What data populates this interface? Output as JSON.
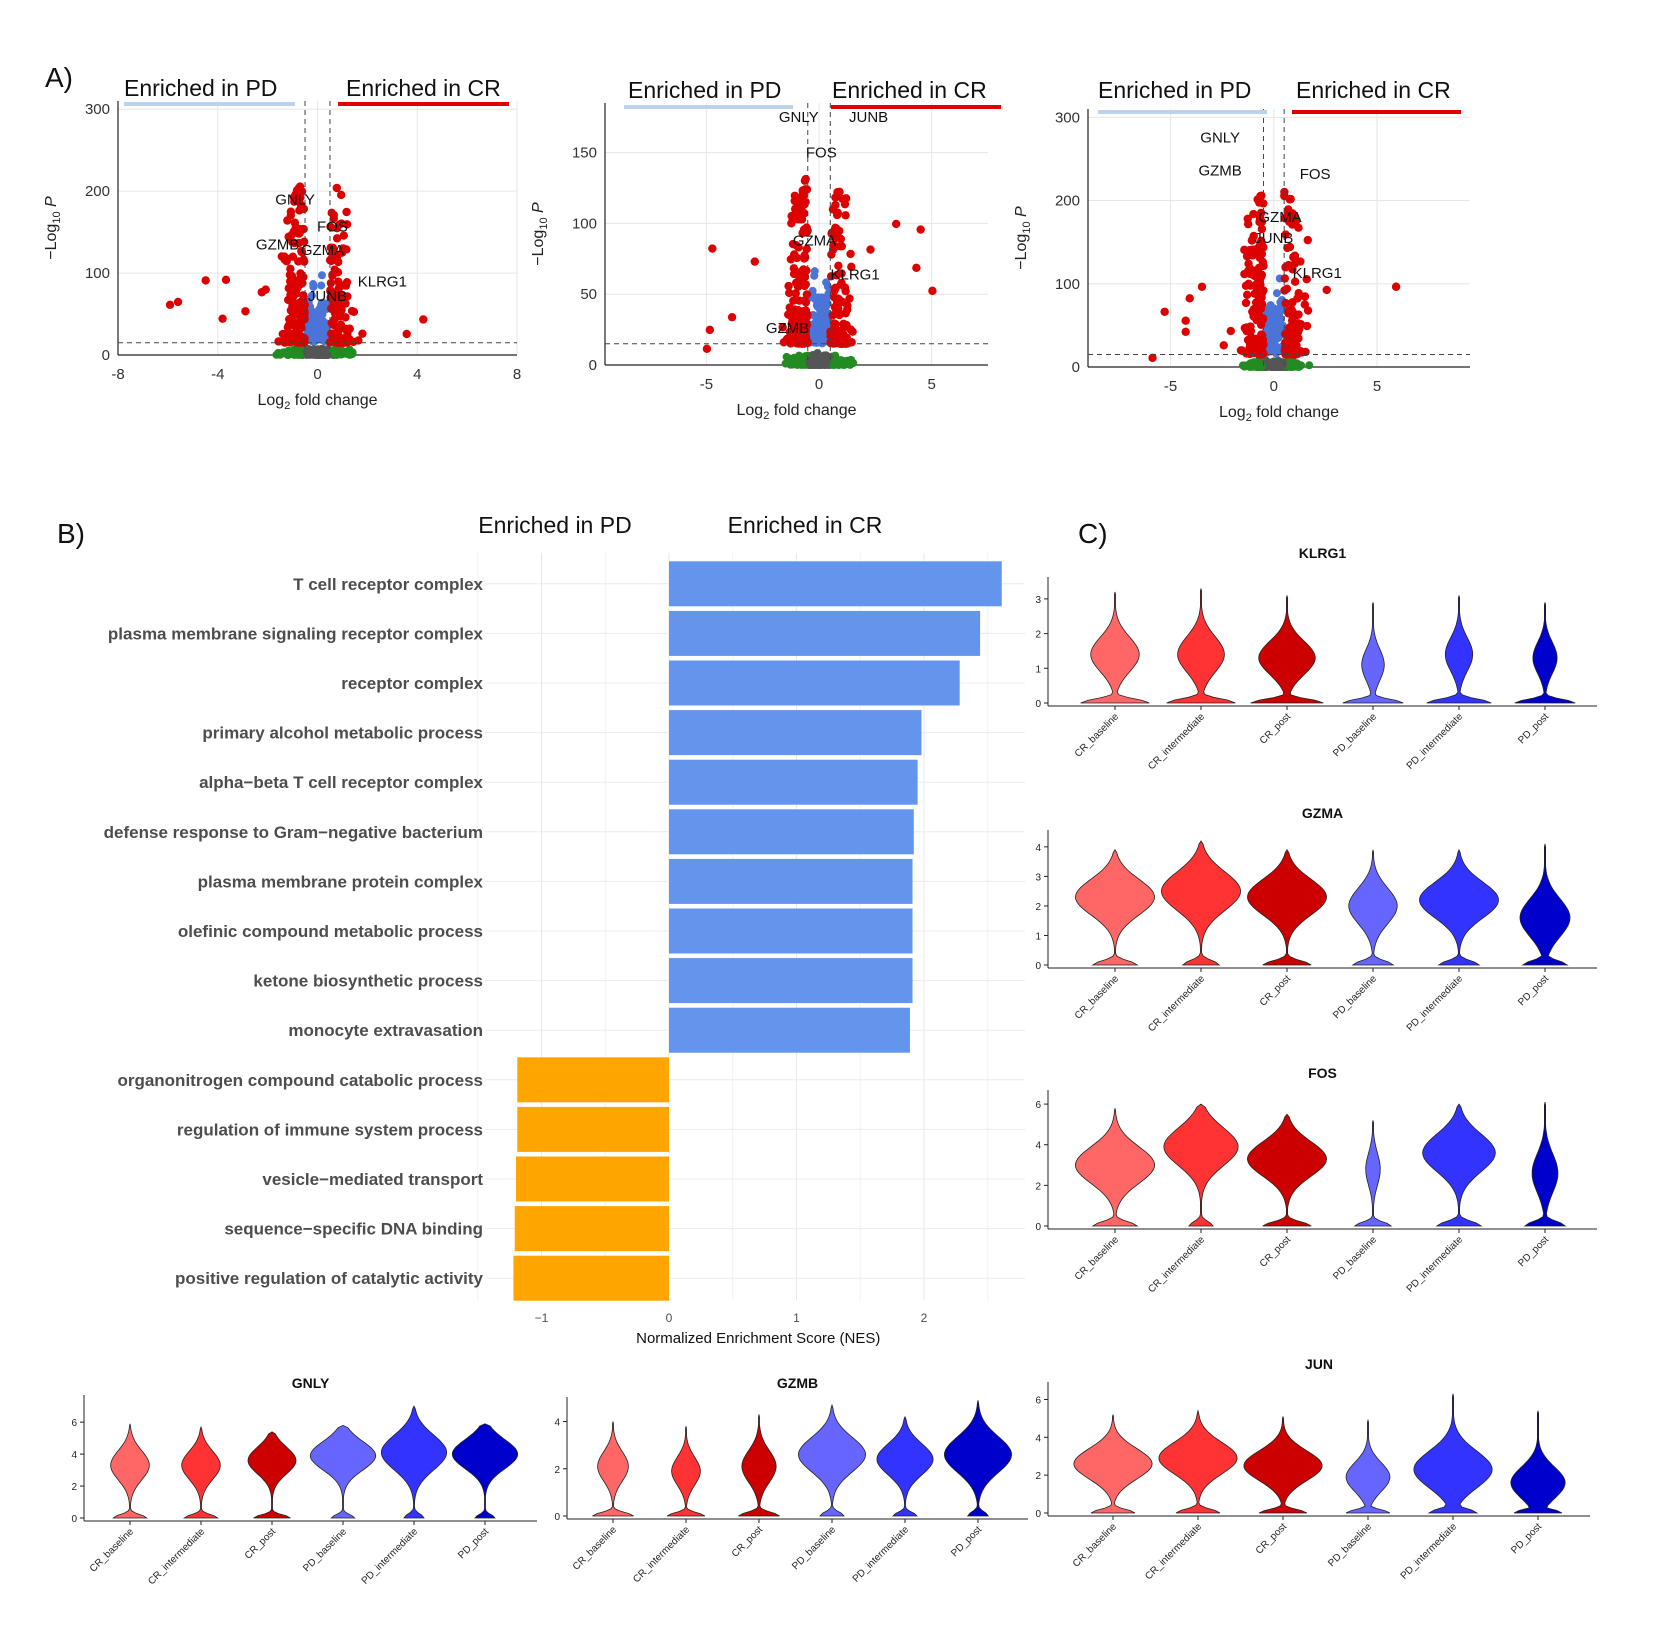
{
  "colors": {
    "pd_bar": "#bcd3ee",
    "cr_bar": "#e00000",
    "sig_up": "#dd0000",
    "sig_fc": "#4a74d8",
    "sig_p": "#228b22",
    "ns": "#555555",
    "gsea_pos": "#6495ed",
    "gsea_neg": "#ffa500",
    "CR_baseline": "#ff6666",
    "CR_intermediate": "#ff3333",
    "CR_post": "#cc0000",
    "PD_baseline": "#6666ff",
    "PD_intermediate": "#3333ff",
    "PD_post": "#0000cc"
  },
  "panel_labels": {
    "a": "A)",
    "b": "B)",
    "c": "C)"
  },
  "enriched_pd": "Enriched in PD",
  "enriched_cr": "Enriched in CR",
  "chart_data": [
    {
      "id": "volcano1",
      "type": "scatter",
      "title": "",
      "xlabel": "Log2 fold change",
      "ylabel": "-Log10 P",
      "xlim": [
        -8,
        8
      ],
      "ylim": [
        0,
        310
      ],
      "xticks": [
        -8,
        -4,
        0,
        4,
        8
      ],
      "xtick_labels": [
        "-8",
        "-4",
        "0",
        "4",
        "8"
      ],
      "yticks": [
        0,
        100,
        200,
        300
      ],
      "ytick_labels": [
        "0",
        "100",
        "200",
        "300"
      ],
      "fc_cutoff": 0.5,
      "p_cutoff": 15,
      "genes": [
        {
          "label": "GNLY",
          "x": -0.9,
          "y": 190
        },
        {
          "label": "FOS",
          "x": 0.6,
          "y": 157
        },
        {
          "label": "GZMB",
          "x": -1.6,
          "y": 135
        },
        {
          "label": "GZMA",
          "x": 0.2,
          "y": 128
        },
        {
          "label": "KLRG1",
          "x": 2.6,
          "y": 90
        },
        {
          "label": "JUNB",
          "x": 0.4,
          "y": 72
        }
      ]
    },
    {
      "id": "volcano2",
      "type": "scatter",
      "title": "",
      "xlabel": "Log2 fold change",
      "ylabel": "-Log10 P",
      "xlim": [
        -9.5,
        7.5
      ],
      "ylim": [
        0,
        185
      ],
      "xticks": [
        -5,
        0,
        5
      ],
      "xtick_labels": [
        "-5",
        "0",
        "5"
      ],
      "yticks": [
        0,
        50,
        100,
        150
      ],
      "ytick_labels": [
        "0",
        "50",
        "100",
        "150"
      ],
      "fc_cutoff": 0.5,
      "p_cutoff": 15,
      "genes": [
        {
          "label": "GNLY",
          "x": -0.9,
          "y": 175
        },
        {
          "label": "JUNB",
          "x": 2.2,
          "y": 175
        },
        {
          "label": "FOS",
          "x": 0.1,
          "y": 150
        },
        {
          "label": "GZMA",
          "x": -0.2,
          "y": 88
        },
        {
          "label": "KLRG1",
          "x": 1.6,
          "y": 64
        },
        {
          "label": "GZMB",
          "x": -1.4,
          "y": 26
        }
      ]
    },
    {
      "id": "volcano3",
      "type": "scatter",
      "title": "",
      "xlabel": "Log2 fold change",
      "ylabel": "-Log10 P",
      "xlim": [
        -9,
        9.5
      ],
      "ylim": [
        0,
        310
      ],
      "xticks": [
        -5,
        0,
        5
      ],
      "xtick_labels": [
        "-5",
        "0",
        "5"
      ],
      "yticks": [
        0,
        100,
        200,
        300
      ],
      "ytick_labels": [
        "0",
        "100",
        "200",
        "300"
      ],
      "fc_cutoff": 0.5,
      "p_cutoff": 15,
      "genes": [
        {
          "label": "GNLY",
          "x": -2.6,
          "y": 276
        },
        {
          "label": "GZMB",
          "x": -2.6,
          "y": 236
        },
        {
          "label": "FOS",
          "x": 2.0,
          "y": 232
        },
        {
          "label": "GZMA",
          "x": 0.3,
          "y": 180
        },
        {
          "label": "JUNB",
          "x": 0.0,
          "y": 155
        },
        {
          "label": "KLRG1",
          "x": 2.1,
          "y": 113
        }
      ]
    },
    {
      "id": "gsea",
      "type": "bar",
      "orientation": "horizontal",
      "title": "",
      "xlabel": "Normalized Enrichment Score (NES)",
      "ylabel": "",
      "xlim": [
        -1.3,
        2.8
      ],
      "xticks": [
        -1,
        0,
        1,
        2
      ],
      "xtick_labels": [
        "−1",
        "0",
        "1",
        "2"
      ],
      "categories": [
        "T cell receptor complex",
        "plasma membrane signaling receptor complex",
        "receptor complex",
        "primary alcohol metabolic process",
        "alpha−beta T cell receptor complex",
        "defense response to Gram−negative bacterium",
        "plasma membrane protein complex",
        "olefinic compound metabolic process",
        "ketone biosynthetic process",
        "monocyte extravasation",
        "organonitrogen compound catabolic process",
        "regulation of immune system process",
        "vesicle−mediated transport",
        "sequence−specific DNA binding",
        "positive regulation of catalytic activity"
      ],
      "values": [
        2.61,
        2.44,
        2.28,
        1.98,
        1.95,
        1.92,
        1.91,
        1.91,
        1.91,
        1.89,
        -1.19,
        -1.19,
        -1.2,
        -1.21,
        -1.22
      ]
    },
    {
      "id": "violin_klrg1",
      "type": "violin",
      "title": "KLRG1",
      "ylim": [
        0,
        3.4
      ],
      "yticks": [
        0,
        1,
        2,
        3
      ],
      "ytick_labels": [
        "0",
        "1",
        "2",
        "3"
      ],
      "categories": [
        "CR_baseline",
        "CR_intermediate",
        "CR_post",
        "PD_baseline",
        "PD_intermediate",
        "PD_post"
      ],
      "max": [
        3.2,
        3.3,
        3.1,
        2.9,
        3.1,
        2.9
      ],
      "mode": [
        1.4,
        1.4,
        1.3,
        1.1,
        1.4,
        1.3
      ],
      "width": [
        0.6,
        0.58,
        0.7,
        0.28,
        0.34,
        0.3
      ],
      "base": [
        0.85,
        0.85,
        0.9,
        0.75,
        0.8,
        0.75
      ]
    },
    {
      "id": "violin_gzma",
      "type": "violin",
      "title": "GZMA",
      "ylim": [
        0,
        4.3
      ],
      "yticks": [
        0,
        1,
        2,
        3,
        4
      ],
      "ytick_labels": [
        "0",
        "1",
        "2",
        "3",
        "4"
      ],
      "categories": [
        "CR_baseline",
        "CR_intermediate",
        "CR_post",
        "PD_baseline",
        "PD_intermediate",
        "PD_post"
      ],
      "max": [
        3.9,
        4.2,
        3.9,
        3.9,
        3.9,
        4.1
      ],
      "mode": [
        2.3,
        2.5,
        2.3,
        2.0,
        2.2,
        1.6
      ],
      "width": [
        0.98,
        0.98,
        0.98,
        0.6,
        0.98,
        0.62
      ],
      "base": [
        0.55,
        0.45,
        0.6,
        0.5,
        0.5,
        0.55
      ]
    },
    {
      "id": "violin_fos",
      "type": "violin",
      "title": "FOS",
      "ylim": [
        0,
        6.3
      ],
      "yticks": [
        0,
        2,
        4,
        6
      ],
      "ytick_labels": [
        "0",
        "2",
        "4",
        "6"
      ],
      "categories": [
        "CR_baseline",
        "CR_intermediate",
        "CR_post",
        "PD_baseline",
        "PD_intermediate",
        "PD_post"
      ],
      "max": [
        5.8,
        6.0,
        5.5,
        5.2,
        6.0,
        6.1
      ],
      "mode": [
        3.0,
        3.9,
        3.3,
        2.8,
        3.6,
        2.6
      ],
      "width": [
        0.98,
        0.92,
        0.98,
        0.18,
        0.9,
        0.32
      ],
      "base": [
        0.55,
        0.3,
        0.6,
        0.45,
        0.55,
        0.5
      ]
    },
    {
      "id": "violin_jun",
      "type": "violin",
      "title": "JUN",
      "ylim": [
        0,
        6.5
      ],
      "yticks": [
        0,
        2,
        4,
        6
      ],
      "ytick_labels": [
        "0",
        "2",
        "4",
        "6"
      ],
      "categories": [
        "CR_baseline",
        "CR_intermediate",
        "CR_post",
        "PD_baseline",
        "PD_intermediate",
        "PD_post"
      ],
      "max": [
        5.2,
        5.4,
        5.1,
        4.9,
        6.3,
        5.4
      ],
      "mode": [
        2.6,
        2.9,
        2.5,
        1.9,
        2.3,
        1.6
      ],
      "width": [
        0.98,
        0.98,
        0.98,
        0.55,
        0.98,
        0.68
      ],
      "base": [
        0.55,
        0.55,
        0.6,
        0.55,
        0.6,
        0.6
      ]
    },
    {
      "id": "violin_gnly",
      "type": "violin",
      "title": "GNLY",
      "ylim": [
        0,
        7.2
      ],
      "yticks": [
        0,
        2,
        4,
        6
      ],
      "ytick_labels": [
        "0",
        "2",
        "4",
        "6"
      ],
      "categories": [
        "CR_baseline",
        "CR_intermediate",
        "CR_post",
        "PD_baseline",
        "PD_intermediate",
        "PD_post"
      ],
      "max": [
        5.9,
        5.7,
        5.4,
        5.8,
        7.0,
        5.9
      ],
      "mode": [
        3.3,
        3.3,
        3.6,
        3.9,
        4.1,
        4.0
      ],
      "width": [
        0.58,
        0.58,
        0.72,
        0.98,
        0.98,
        0.98
      ],
      "base": [
        0.5,
        0.5,
        0.55,
        0.35,
        0.3,
        0.3
      ]
    },
    {
      "id": "violin_gzmb",
      "type": "violin",
      "title": "GZMB",
      "ylim": [
        0,
        4.7
      ],
      "yticks": [
        0,
        2,
        4
      ],
      "ytick_labels": [
        "0",
        "2",
        "4"
      ],
      "categories": [
        "CR_baseline",
        "CR_intermediate",
        "CR_post",
        "PD_baseline",
        "PD_intermediate",
        "PD_post"
      ],
      "max": [
        4.0,
        3.8,
        4.3,
        4.7,
        4.2,
        4.9
      ],
      "mode": [
        2.1,
        1.9,
        2.1,
        2.6,
        2.4,
        2.6
      ],
      "width": [
        0.45,
        0.42,
        0.5,
        0.98,
        0.82,
        0.98
      ],
      "base": [
        0.6,
        0.55,
        0.6,
        0.35,
        0.35,
        0.3
      ]
    }
  ]
}
